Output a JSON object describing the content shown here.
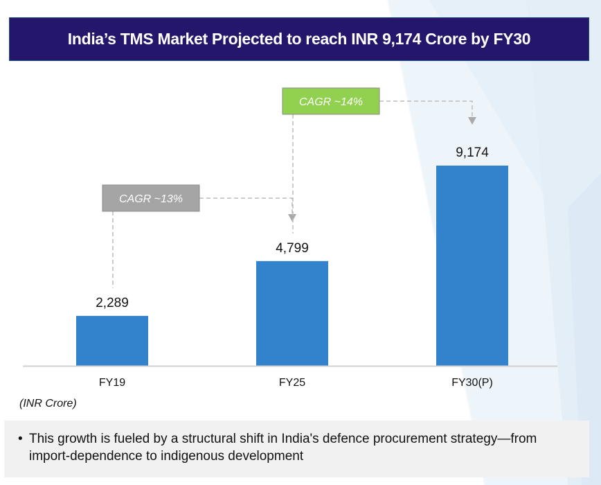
{
  "title": "India’s TMS Market Projected to reach INR 9,174 Crore by FY30",
  "chart_data": {
    "type": "bar",
    "categories": [
      "FY19",
      "FY25",
      "FY30(P)"
    ],
    "values": [
      2289,
      4799,
      9174
    ],
    "value_labels": [
      "2,289",
      "4,799",
      "9,174"
    ],
    "title": "India’s TMS Market Projected to reach INR 9,174 Crore by FY30",
    "xlabel": "",
    "ylabel": "",
    "unit_label": "(INR Crore)",
    "ylim": [
      0,
      13000
    ],
    "grid": false,
    "legend": "none",
    "bar_color": "#3282cc",
    "annotations": [
      {
        "text": "CAGR ~13%",
        "from": "FY19",
        "to": "FY25",
        "color": "#a5a5a5"
      },
      {
        "text": "CAGR ~14%",
        "from": "FY25",
        "to": "FY30(P)",
        "color": "#92d050"
      }
    ]
  },
  "notes": [
    "This growth is fueled by a structural shift in India's defence procurement strategy—from import-dependence to indigenous development"
  ],
  "colors": {
    "title_bg": "#24166b",
    "bar": "#3282cc",
    "cagr_gray": "#a5a5a5",
    "cagr_green": "#92d050",
    "note_bg": "#f1f1f1"
  }
}
